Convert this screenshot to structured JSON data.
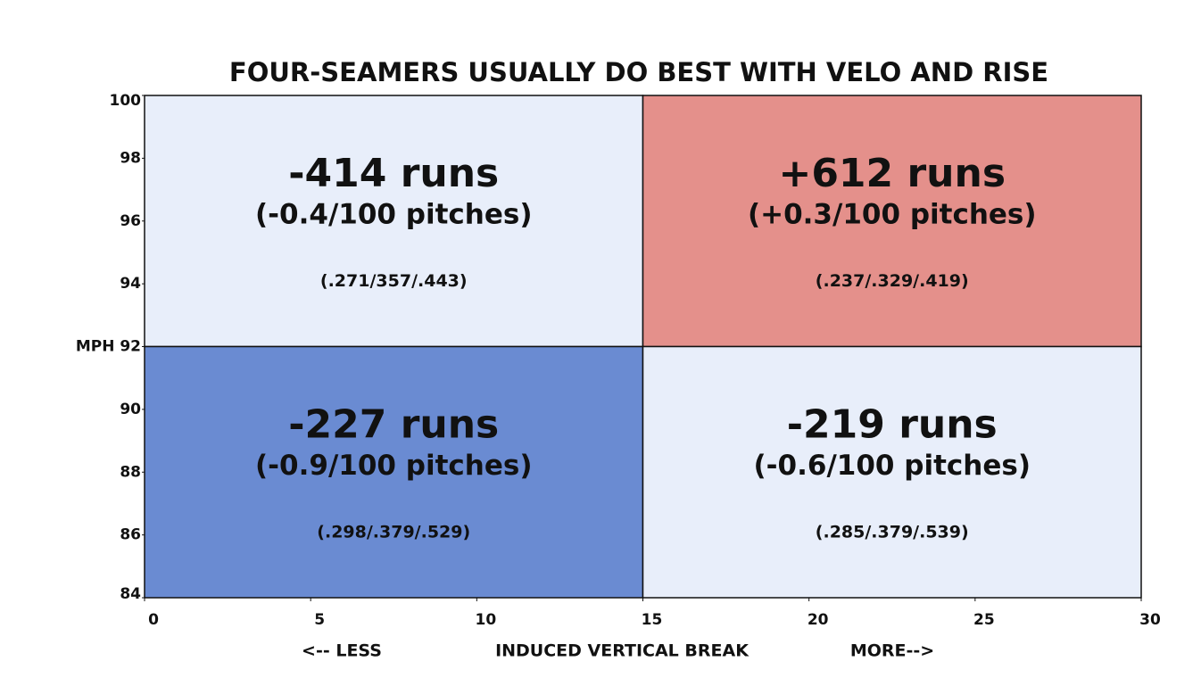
{
  "chart_data": {
    "type": "quadrant",
    "title": "FOUR-SEAMERS USUALLY DO BEST WITH VELO AND RISE",
    "x_label_left": "<-- LESS",
    "x_label": "INDUCED VERTICAL BREAK",
    "x_label_right": "MORE-->",
    "xlim": [
      0,
      30
    ],
    "ylim": [
      84,
      100
    ],
    "xticks": [
      0,
      5,
      10,
      15,
      20,
      25,
      30
    ],
    "yticks": [
      84,
      86,
      88,
      90,
      {
        "value": 92,
        "label": "MPH 92"
      },
      94,
      96,
      98,
      100
    ],
    "cells": [
      {
        "xrange": [
          0,
          15
        ],
        "yrange": [
          92,
          100
        ],
        "color": "#e8eefa",
        "value": -414,
        "value_label": "-414 runs",
        "rate_label": "(-0.4/100 pitches)",
        "slash_line": "(.271/357/.443)"
      },
      {
        "xrange": [
          15,
          30
        ],
        "yrange": [
          92,
          100
        ],
        "color": "#e4908b",
        "value": 612,
        "value_label": "+612 runs",
        "rate_label": "(+0.3/100 pitches)",
        "slash_line": "(.237/.329/.419)"
      },
      {
        "xrange": [
          0,
          15
        ],
        "yrange": [
          84,
          92
        ],
        "color": "#6a8bd2",
        "value": -227,
        "value_label": "-227 runs",
        "rate_label": "(-0.9/100 pitches)",
        "slash_line": "(.298/.379/.529)"
      },
      {
        "xrange": [
          15,
          30
        ],
        "yrange": [
          84,
          92
        ],
        "color": "#e8eefa",
        "value": -219,
        "value_label": "-219 runs",
        "rate_label": "(-0.6/100 pitches)",
        "slash_line": "(.285/.379/.539)"
      }
    ]
  }
}
